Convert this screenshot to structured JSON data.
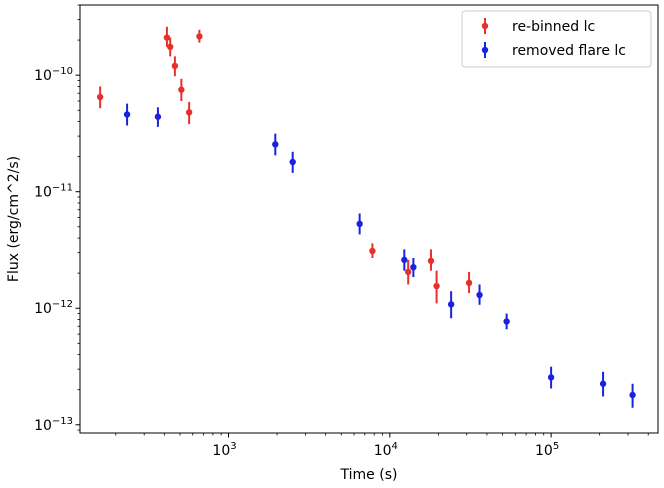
{
  "chart_data": {
    "type": "scatter",
    "xlabel": "Time (s)",
    "ylabel": "Flux (erg/cm^2/s)",
    "x_scale": "log",
    "y_scale": "log",
    "xlim": [
      120,
      460000
    ],
    "ylim": [
      8.5e-14,
      4e-10
    ],
    "x_ticks": [
      {
        "value": 1000,
        "label": "10",
        "exp": "3"
      },
      {
        "value": 10000,
        "label": "10",
        "exp": "4"
      },
      {
        "value": 100000,
        "label": "10",
        "exp": "5"
      }
    ],
    "y_ticks": [
      {
        "value": 1e-13,
        "label": "10",
        "exp": "−13"
      },
      {
        "value": 1e-12,
        "label": "10",
        "exp": "−12"
      },
      {
        "value": 1e-11,
        "label": "10",
        "exp": "−11"
      },
      {
        "value": 1e-10,
        "label": "10",
        "exp": "−10"
      }
    ],
    "grid": false,
    "legend_position": "top-right",
    "series": [
      {
        "name": "re-binned lc",
        "color": "#e8302a",
        "points": [
          {
            "x": 160,
            "y": 6.5e-11,
            "lo": 5.2e-11,
            "hi": 8e-11
          },
          {
            "x": 415,
            "y": 2.1e-10,
            "lo": 1.75e-10,
            "hi": 2.6e-10
          },
          {
            "x": 435,
            "y": 1.75e-10,
            "lo": 1.45e-10,
            "hi": 2.1e-10
          },
          {
            "x": 465,
            "y": 1.2e-10,
            "lo": 9.8e-11,
            "hi": 1.45e-10
          },
          {
            "x": 510,
            "y": 7.5e-11,
            "lo": 6e-11,
            "hi": 9.3e-11
          },
          {
            "x": 570,
            "y": 4.8e-11,
            "lo": 3.8e-11,
            "hi": 5.9e-11
          },
          {
            "x": 660,
            "y": 2.15e-10,
            "lo": 1.9e-10,
            "hi": 2.45e-10
          },
          {
            "x": 7800,
            "y": 3.1e-12,
            "lo": 2.7e-12,
            "hi": 3.6e-12
          },
          {
            "x": 13000,
            "y": 2.05e-12,
            "lo": 1.6e-12,
            "hi": 2.6e-12
          },
          {
            "x": 18000,
            "y": 2.55e-12,
            "lo": 2.1e-12,
            "hi": 3.2e-12
          },
          {
            "x": 19500,
            "y": 1.55e-12,
            "lo": 1.1e-12,
            "hi": 2.1e-12
          },
          {
            "x": 31000,
            "y": 1.65e-12,
            "lo": 1.35e-12,
            "hi": 2.05e-12
          }
        ]
      },
      {
        "name": "removed flare lc",
        "color": "#1a22e0",
        "points": [
          {
            "x": 235,
            "y": 4.6e-11,
            "lo": 3.7e-11,
            "hi": 5.7e-11
          },
          {
            "x": 365,
            "y": 4.4e-11,
            "lo": 3.6e-11,
            "hi": 5.3e-11
          },
          {
            "x": 1950,
            "y": 2.55e-11,
            "lo": 2.05e-11,
            "hi": 3.15e-11
          },
          {
            "x": 2500,
            "y": 1.8e-11,
            "lo": 1.45e-11,
            "hi": 2.2e-11
          },
          {
            "x": 6500,
            "y": 5.3e-12,
            "lo": 4.3e-12,
            "hi": 6.5e-12
          },
          {
            "x": 12300,
            "y": 2.6e-12,
            "lo": 2.1e-12,
            "hi": 3.2e-12
          },
          {
            "x": 14000,
            "y": 2.25e-12,
            "lo": 1.85e-12,
            "hi": 2.7e-12
          },
          {
            "x": 24000,
            "y": 1.08e-12,
            "lo": 8.2e-13,
            "hi": 1.4e-12
          },
          {
            "x": 36000,
            "y": 1.3e-12,
            "lo": 1.07e-12,
            "hi": 1.6e-12
          },
          {
            "x": 53000,
            "y": 7.7e-13,
            "lo": 6.6e-13,
            "hi": 9e-13
          },
          {
            "x": 100000,
            "y": 2.55e-13,
            "lo": 2.05e-13,
            "hi": 3.15e-13
          },
          {
            "x": 210000,
            "y": 2.25e-13,
            "lo": 1.75e-13,
            "hi": 2.85e-13
          },
          {
            "x": 320000,
            "y": 1.8e-13,
            "lo": 1.4e-13,
            "hi": 2.25e-13
          }
        ]
      }
    ]
  }
}
